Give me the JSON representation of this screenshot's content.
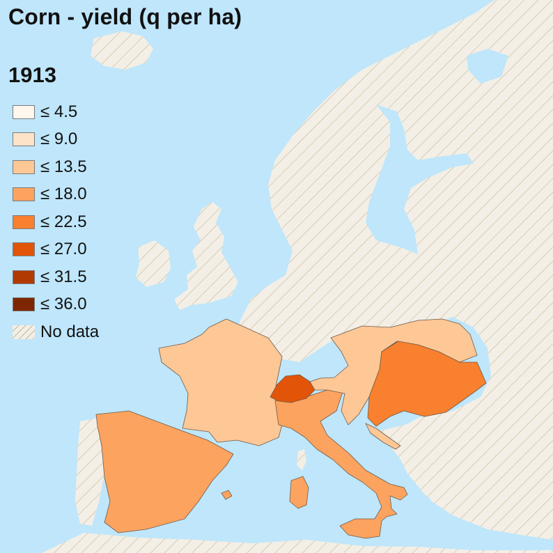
{
  "title": "Corn - yield (q per ha)",
  "year": "1913",
  "legend": {
    "items": [
      {
        "label": "≤ 4.5",
        "color": "#fff6ec"
      },
      {
        "label": "≤ 9.0",
        "color": "#fee3c8"
      },
      {
        "label": "≤ 13.5",
        "color": "#fdc796"
      },
      {
        "label": "≤ 18.0",
        "color": "#fca35f"
      },
      {
        "label": "≤ 22.5",
        "color": "#f8802e"
      },
      {
        "label": "≤ 27.0",
        "color": "#e25508"
      },
      {
        "label": "≤ 31.5",
        "color": "#b13a02"
      },
      {
        "label": "≤ 36.0",
        "color": "#7e2603"
      }
    ],
    "no_data_label": "No data"
  },
  "colors": {
    "sea": "#bfe6fb",
    "no_data_fill": "#f3efe6",
    "no_data_hatch": "#c8b99a",
    "border": "#6d5a4a"
  },
  "regions": [
    {
      "name": "France",
      "bin": "≤ 13.5"
    },
    {
      "name": "Spain",
      "bin": "≤ 18.0"
    },
    {
      "name": "Italy",
      "bin": "≤ 18.0"
    },
    {
      "name": "Switzerland",
      "bin": "≤ 27.0"
    },
    {
      "name": "Austria",
      "bin": "≤ 13.5"
    },
    {
      "name": "Hungary",
      "bin": "≤ 22.5"
    }
  ]
}
